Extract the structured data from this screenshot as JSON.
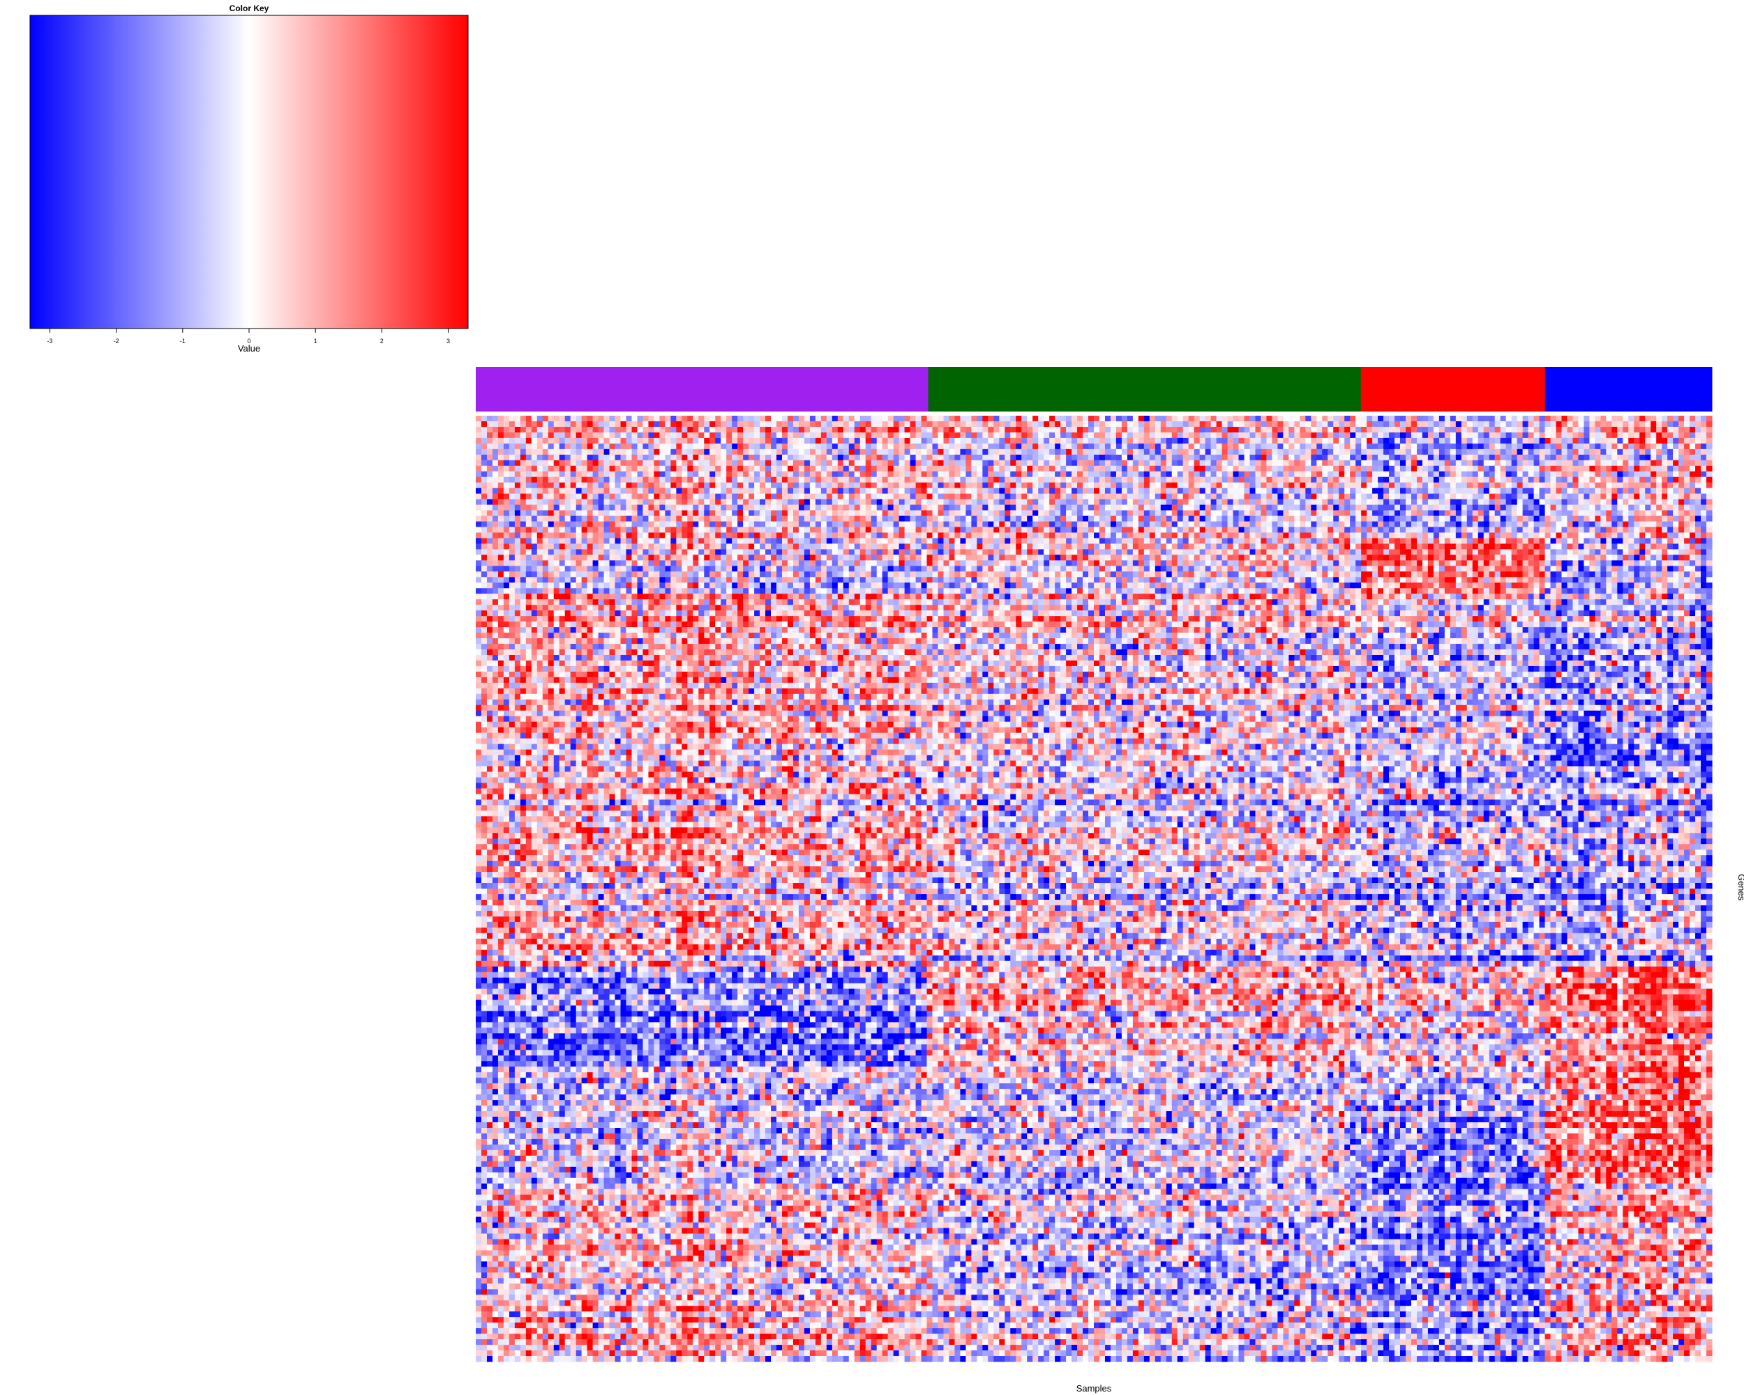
{
  "chart_data": {
    "type": "heatmap",
    "title": "",
    "color_key": {
      "title": "Color Key",
      "xlabel": "Value",
      "range": [
        -3.3,
        3.3
      ],
      "ticks": [
        -3,
        -2,
        -1,
        0,
        1,
        2,
        3
      ],
      "tick_labels": [
        "-3",
        "-2",
        "-1",
        "0",
        "1",
        "2",
        "3"
      ],
      "colors": {
        "low": "#0000ff",
        "mid": "#ffffff",
        "high": "#ff0000"
      }
    },
    "xlabel": "Samples",
    "ylabel": "Genes",
    "column_groups": [
      {
        "color": "#a020f0",
        "fraction": 0.366
      },
      {
        "color": "#006400",
        "fraction": 0.35
      },
      {
        "color": "#ff0000",
        "fraction": 0.149
      },
      {
        "color": "#0000ff",
        "fraction": 0.135
      }
    ],
    "n_columns": 222,
    "n_rows": 170,
    "row_blocks": [
      {
        "fraction": 0.13,
        "bias": [
          0.3,
          0.0,
          -0.6,
          0.4
        ]
      },
      {
        "fraction": 0.06,
        "bias": [
          -0.4,
          0.0,
          1.8,
          -0.6
        ]
      },
      {
        "fraction": 0.15,
        "bias": [
          0.7,
          0.0,
          -0.5,
          -1.0
        ]
      },
      {
        "fraction": 0.03,
        "bias": [
          0.5,
          0.3,
          0.0,
          -1.6
        ]
      },
      {
        "fraction": 0.21,
        "bias": [
          0.5,
          -0.2,
          -0.7,
          -0.8
        ]
      },
      {
        "fraction": 0.11,
        "bias": [
          -1.6,
          0.6,
          0.3,
          1.8
        ]
      },
      {
        "fraction": 0.05,
        "bias": [
          -0.2,
          -0.3,
          -0.5,
          2.0
        ]
      },
      {
        "fraction": 0.07,
        "bias": [
          -0.3,
          -0.2,
          -1.2,
          2.2
        ]
      },
      {
        "fraction": 0.19,
        "bias": [
          0.4,
          -0.5,
          -1.4,
          0.8
        ]
      }
    ]
  }
}
